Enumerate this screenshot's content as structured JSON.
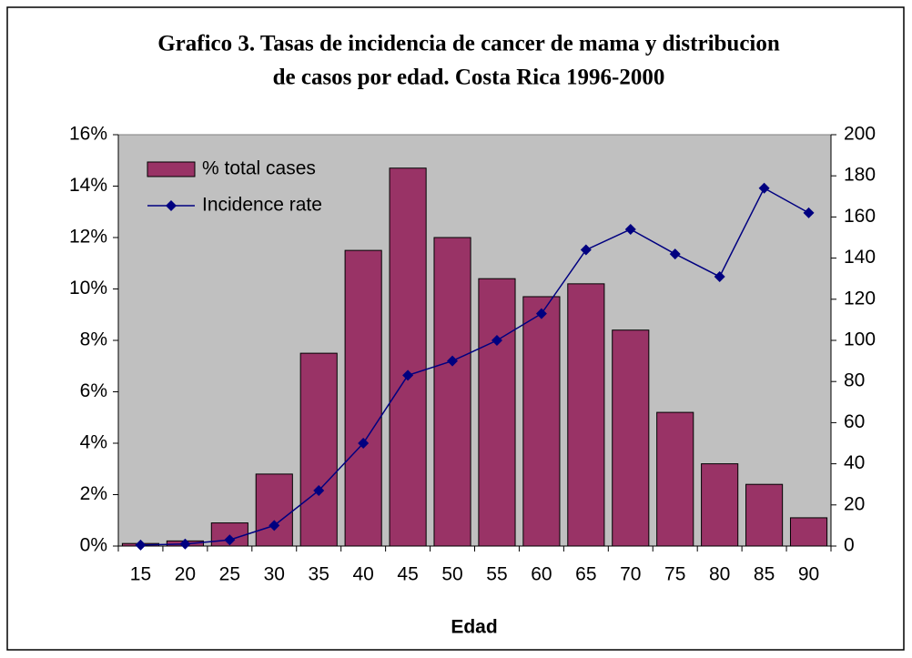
{
  "chart_data": {
    "type": "bar",
    "title": [
      "Grafico 3. Tasas de incidencia de cancer de mama y distribucion",
      "de casos por edad. Costa Rica 1996-2000"
    ],
    "x_label": "Edad",
    "categories": [
      "15",
      "20",
      "25",
      "30",
      "35",
      "40",
      "45",
      "50",
      "55",
      "60",
      "65",
      "70",
      "75",
      "80",
      "85",
      "90"
    ],
    "series": [
      {
        "name": "% total cases",
        "type": "bar",
        "color": "#993366",
        "values": [
          0.1,
          0.2,
          0.9,
          2.8,
          7.5,
          11.5,
          14.7,
          12.0,
          10.4,
          9.7,
          10.2,
          8.4,
          5.2,
          3.2,
          2.4,
          1.1
        ]
      },
      {
        "name": "Incidence rate",
        "type": "line",
        "axis": "y2",
        "color": "#000080",
        "values": [
          0.5,
          1,
          3,
          10,
          27,
          50,
          83,
          90,
          100,
          113,
          144,
          154,
          142,
          131,
          174,
          162
        ]
      }
    ],
    "ylim": [
      0,
      16
    ],
    "yticks": [
      {
        "value": 0,
        "label": "0%"
      },
      {
        "value": 2,
        "label": "2%"
      },
      {
        "value": 4,
        "label": "4%"
      },
      {
        "value": 6,
        "label": "6%"
      },
      {
        "value": 8,
        "label": "8%"
      },
      {
        "value": 10,
        "label": "10%"
      },
      {
        "value": 12,
        "label": "12%"
      },
      {
        "value": 14,
        "label": "14%"
      },
      {
        "value": 16,
        "label": "16%"
      }
    ],
    "y2lim": [
      0,
      200
    ],
    "y2ticks": [
      0,
      20,
      40,
      60,
      80,
      100,
      120,
      140,
      160,
      180,
      200
    ],
    "legend": "upper-left",
    "grid": false
  }
}
